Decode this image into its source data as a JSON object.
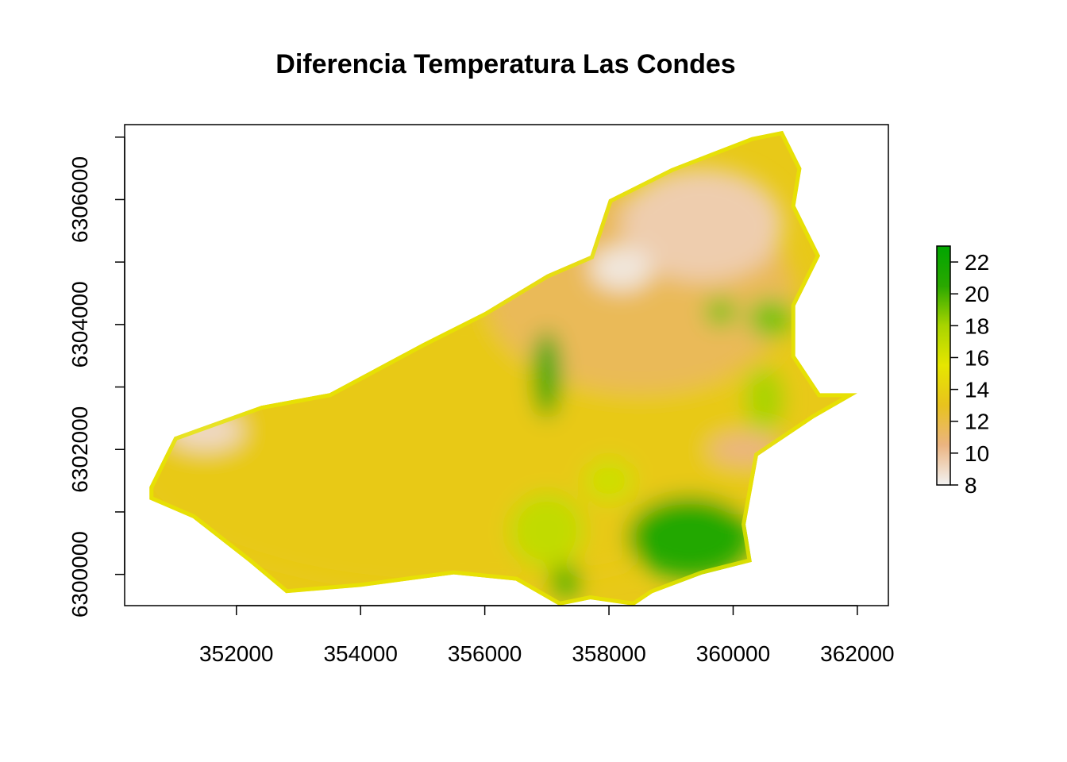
{
  "chart_data": {
    "type": "heatmap",
    "title": "Diferencia Temperatura Las Condes",
    "xlabel": "",
    "ylabel": "",
    "xlim": [
      350200,
      362500
    ],
    "ylim": [
      6299500,
      6307200
    ],
    "x_ticks": [
      352000,
      354000,
      356000,
      358000,
      360000,
      362000
    ],
    "x_tick_labels": [
      "352000",
      "354000",
      "356000",
      "358000",
      "360000",
      "362000"
    ],
    "y_ticks": [
      6300000,
      6301000,
      6302000,
      6303000,
      6304000,
      6305000,
      6306000,
      6307000
    ],
    "y_tick_labels": [
      "6300000",
      "",
      "6302000",
      "",
      "6304000",
      "",
      "6306000",
      ""
    ],
    "legend": {
      "placement": "right",
      "min": 8,
      "max": 23,
      "ticks": [
        8,
        10,
        12,
        14,
        16,
        18,
        20,
        22
      ],
      "tick_labels": [
        "8",
        "10",
        "12",
        "14",
        "16",
        "18",
        "20",
        "22"
      ],
      "colors": [
        "#f2f2f2",
        "#ebb481",
        "#e8c21e",
        "#e6e600",
        "#a8d400",
        "#2aa800",
        "#00a600"
      ]
    },
    "boundary": [
      [
        350600,
        6301400
      ],
      [
        351000,
        6302200
      ],
      [
        352400,
        6302700
      ],
      [
        353500,
        6302900
      ],
      [
        355000,
        6303700
      ],
      [
        356000,
        6304200
      ],
      [
        357000,
        6304800
      ],
      [
        357700,
        6305100
      ],
      [
        358000,
        6306000
      ],
      [
        359000,
        6306500
      ],
      [
        360300,
        6307000
      ],
      [
        360800,
        6307100
      ],
      [
        361100,
        6306500
      ],
      [
        361000,
        6305900
      ],
      [
        361400,
        6305100
      ],
      [
        361000,
        6304300
      ],
      [
        361000,
        6303500
      ],
      [
        361400,
        6302900
      ],
      [
        362000,
        6302900
      ],
      [
        361300,
        6302500
      ],
      [
        360400,
        6301900
      ],
      [
        360200,
        6300800
      ],
      [
        360300,
        6300200
      ],
      [
        359500,
        6300000
      ],
      [
        358700,
        6299700
      ],
      [
        358400,
        6299500
      ],
      [
        357700,
        6299600
      ],
      [
        357200,
        6299500
      ],
      [
        356500,
        6299900
      ],
      [
        355500,
        6300000
      ],
      [
        354000,
        6299800
      ],
      [
        352800,
        6299700
      ],
      [
        352200,
        6300200
      ],
      [
        351300,
        6300900
      ],
      [
        350600,
        6301200
      ]
    ],
    "zones": [
      {
        "x": 355500,
        "y": 6302000,
        "rx": 5200,
        "ry": 2200,
        "value": 13.5
      },
      {
        "x": 358500,
        "y": 6304500,
        "rx": 2500,
        "ry": 1600,
        "value": 11.5
      },
      {
        "x": 359500,
        "y": 6305600,
        "rx": 1300,
        "ry": 900,
        "value": 9.5
      },
      {
        "x": 358200,
        "y": 6304900,
        "rx": 500,
        "ry": 350,
        "value": 8.5
      },
      {
        "x": 351500,
        "y": 6302300,
        "rx": 600,
        "ry": 300,
        "value": 9
      },
      {
        "x": 360200,
        "y": 6302000,
        "rx": 600,
        "ry": 250,
        "value": 10.5
      },
      {
        "x": 357000,
        "y": 6303200,
        "rx": 220,
        "ry": 700,
        "value": 22
      },
      {
        "x": 359300,
        "y": 6300600,
        "rx": 1000,
        "ry": 650,
        "value": 21
      },
      {
        "x": 360600,
        "y": 6304100,
        "rx": 350,
        "ry": 300,
        "value": 19
      },
      {
        "x": 359800,
        "y": 6304200,
        "rx": 250,
        "ry": 220,
        "value": 19
      },
      {
        "x": 360500,
        "y": 6302800,
        "rx": 300,
        "ry": 500,
        "value": 18
      },
      {
        "x": 357000,
        "y": 6300700,
        "rx": 600,
        "ry": 600,
        "value": 17
      },
      {
        "x": 358000,
        "y": 6301500,
        "rx": 400,
        "ry": 350,
        "value": 16.5
      },
      {
        "x": 357300,
        "y": 6299900,
        "rx": 250,
        "ry": 250,
        "value": 20
      }
    ]
  }
}
